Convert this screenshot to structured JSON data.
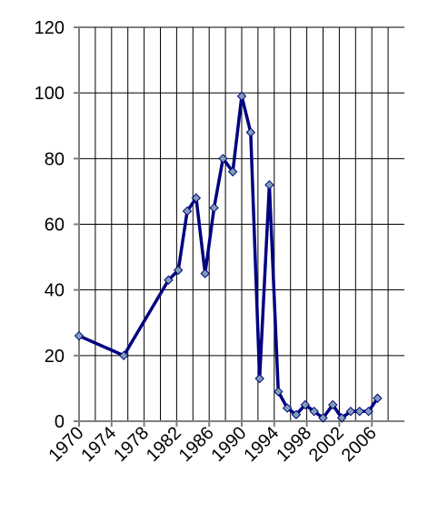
{
  "chart_data": {
    "type": "line",
    "x": [
      1970,
      1975.5,
      1981,
      1982.2,
      1983.3,
      1984.4,
      1985.5,
      1986.6,
      1987.7,
      1988.9,
      1990,
      1991.1,
      1992.2,
      1993.4,
      1994.5,
      1995.6,
      1996.7,
      1997.8,
      1998.9,
      2000,
      2001.2,
      2002.3,
      2003.4,
      2004.5,
      2005.6,
      2006.7
    ],
    "series": [
      {
        "color": "#000080",
        "marker_color": "#7f9fb5",
        "values": [
          26,
          20,
          43,
          46,
          64,
          68,
          45,
          65,
          80,
          76,
          99,
          88,
          13,
          72,
          9,
          4,
          2,
          5,
          3,
          1,
          5,
          1,
          3,
          3,
          3,
          7
        ]
      }
    ],
    "xlim": [
      1970,
      2010
    ],
    "xticks": [
      1970,
      1974,
      1978,
      1982,
      1986,
      1990,
      1994,
      1998,
      2002,
      2006
    ],
    "x_minor_ticks": [
      1972,
      1976,
      1980,
      1984,
      1988,
      1992,
      1996,
      2000,
      2004,
      2008
    ],
    "ylim": [
      0,
      120
    ],
    "yticks": [
      0,
      20,
      40,
      60,
      80,
      100,
      120
    ],
    "grid": true
  }
}
